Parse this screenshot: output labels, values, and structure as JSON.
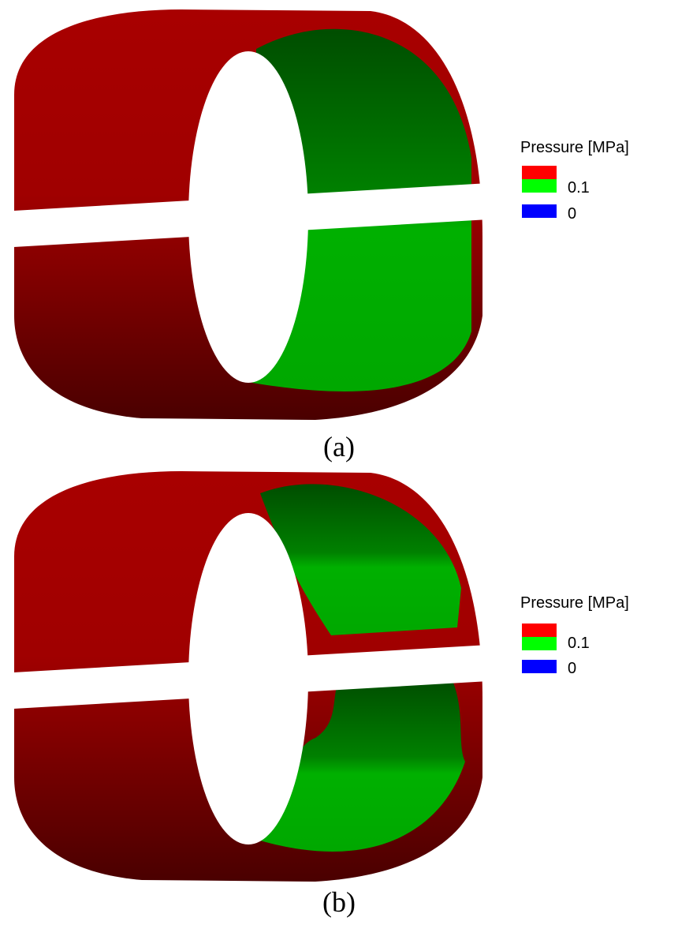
{
  "panels": [
    {
      "caption": "(a)",
      "legend": {
        "title": "Pressure [MPa]",
        "labels": [
          "0.1",
          "0"
        ]
      }
    },
    {
      "caption": "(b)",
      "legend": {
        "title": "Pressure [MPa]",
        "labels": [
          "0.1",
          "0"
        ]
      }
    }
  ]
}
